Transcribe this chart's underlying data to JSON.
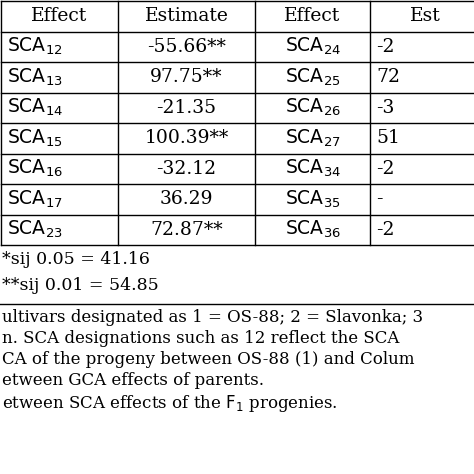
{
  "col_headers": [
    "Effect",
    "Estimate",
    "Effect",
    "Est"
  ],
  "left_effects": [
    "12",
    "13",
    "14",
    "15",
    "16",
    "17",
    "23"
  ],
  "left_estimates": [
    "-55.66**",
    "97.75**",
    "-21.35",
    "100.39**",
    "-32.12",
    "36.29",
    "72.87**"
  ],
  "right_effects": [
    "24",
    "25",
    "26",
    "27",
    "34",
    "35",
    "36"
  ],
  "right_estimates_partial": [
    "-2",
    "72",
    "-3",
    "51",
    "-2",
    "-",
    "-2"
  ],
  "footnote1": "*sij 0.05 = 41.16",
  "footnote2": "**sij 0.01 = 54.85",
  "footer_lines": [
    "ultivars designated as 1 = OS-88; 2 = Slavonka; 3",
    "n. SCA designations such as 12 reflect the SCA",
    "CA of the progeny between OS-88 (1) and Colum",
    "etween GCA effects of parents.",
    "etween SCA effects of the F_1 progenies."
  ],
  "bg_color": "#ffffff",
  "text_color": "#000000",
  "line_color": "#000000"
}
